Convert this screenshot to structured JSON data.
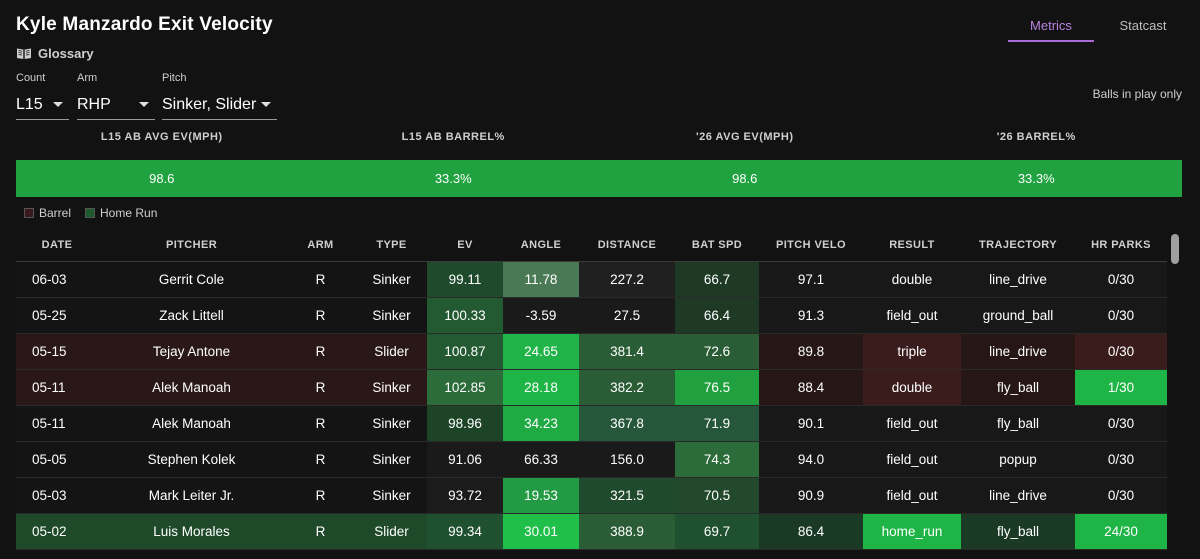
{
  "page": {
    "title": "Kyle Manzardo Exit Velocity",
    "glossary": "Glossary"
  },
  "tabs": [
    {
      "label": "Metrics",
      "active": true
    },
    {
      "label": "Statcast",
      "active": false
    }
  ],
  "filters": {
    "count": {
      "label": "Count",
      "value": "L15"
    },
    "arm": {
      "label": "Arm",
      "value": "RHP"
    },
    "pitch": {
      "label": "Pitch",
      "value": "Sinker, Slider"
    }
  },
  "balls_in_play": "Balls in play only",
  "summary": {
    "headers": [
      "L15 AB AVG EV(MPH)",
      "L15 AB BARREL%",
      "'26 AVG EV(MPH)",
      "'26 BARREL%"
    ],
    "values": [
      "98.6",
      "33.3%",
      "98.6",
      "33.3%"
    ],
    "color": "#1fa23f"
  },
  "legend": [
    {
      "label": "Barrel",
      "color": "#3a1a1a"
    },
    {
      "label": "Home Run",
      "color": "#1e5a2c"
    }
  ],
  "table": {
    "columns": [
      "DATE",
      "PITCHER",
      "ARM",
      "TYPE",
      "EV",
      "ANGLE",
      "DISTANCE",
      "BAT SPD",
      "PITCH VELO",
      "RESULT",
      "TRAJECTORY",
      "HR PARKS"
    ],
    "rows": [
      {
        "cells": [
          "06-03",
          "Gerrit Cole",
          "R",
          "Sinker",
          "99.11",
          "11.78",
          "227.2",
          "66.7",
          "97.1",
          "double",
          "line_drive",
          "0/30"
        ],
        "bg": "#141414",
        "colors": [
          "",
          "",
          "",
          "",
          "#1f4a2b",
          "#4a7a55",
          "#202020",
          "#1e3a25",
          "#181818",
          "#181818",
          "#181818",
          "#181818"
        ]
      },
      {
        "cells": [
          "05-25",
          "Zack Littell",
          "R",
          "Sinker",
          "100.33",
          "-3.59",
          "27.5",
          "66.4",
          "91.3",
          "field_out",
          "ground_ball",
          "0/30"
        ],
        "bg": "#141414",
        "colors": [
          "",
          "",
          "",
          "",
          "#245a32",
          "#1a1a1a",
          "#1a1a1a",
          "#1e3a25",
          "#181818",
          "#181818",
          "#181818",
          "#181818"
        ]
      },
      {
        "cells": [
          "05-15",
          "Tejay Antone",
          "R",
          "Slider",
          "100.87",
          "24.65",
          "381.4",
          "72.6",
          "89.8",
          "triple",
          "line_drive",
          "0/30"
        ],
        "bg": "#2a1818",
        "colors": [
          "",
          "",
          "",
          "",
          "#245a32",
          "#20b348",
          "#2a5d36",
          "#2a5d36",
          "#261616",
          "#3a1c1c",
          "#261616",
          "#3a1c1c"
        ]
      },
      {
        "cells": [
          "05-11",
          "Alek Manoah",
          "R",
          "Sinker",
          "102.85",
          "28.18",
          "382.2",
          "76.5",
          "88.4",
          "double",
          "fly_ball",
          "1/30"
        ],
        "bg": "#2a1818",
        "colors": [
          "",
          "",
          "",
          "",
          "#2c6b3a",
          "#1fb446",
          "#2a5d36",
          "#21a03f",
          "#261616",
          "#3a1c1c",
          "#261616",
          "#1fb446"
        ]
      },
      {
        "cells": [
          "05-11",
          "Alek Manoah",
          "R",
          "Sinker",
          "98.96",
          "34.23",
          "367.8",
          "71.9",
          "90.1",
          "field_out",
          "fly_ball",
          "0/30"
        ],
        "bg": "#141414",
        "colors": [
          "",
          "",
          "",
          "",
          "#1e4428",
          "#1faa44",
          "#27573a",
          "#27573a",
          "#181818",
          "#181818",
          "#181818",
          "#181818"
        ]
      },
      {
        "cells": [
          "05-05",
          "Stephen Kolek",
          "R",
          "Sinker",
          "91.06",
          "66.33",
          "156.0",
          "74.3",
          "94.0",
          "field_out",
          "popup",
          "0/30"
        ],
        "bg": "#141414",
        "colors": [
          "",
          "",
          "",
          "",
          "#1a1a1a",
          "#1a1a1a",
          "#1a1a1a",
          "#2c6b3a",
          "#181818",
          "#181818",
          "#181818",
          "#181818"
        ]
      },
      {
        "cells": [
          "05-03",
          "Mark Leiter Jr.",
          "R",
          "Sinker",
          "93.72",
          "19.53",
          "321.5",
          "70.5",
          "90.9",
          "field_out",
          "line_drive",
          "0/30"
        ],
        "bg": "#141414",
        "colors": [
          "",
          "",
          "",
          "",
          "#1b1b1b",
          "#239a44",
          "#1f4a2b",
          "#22492c",
          "#181818",
          "#181818",
          "#181818",
          "#181818"
        ]
      },
      {
        "cells": [
          "05-02",
          "Luis Morales",
          "R",
          "Slider",
          "99.34",
          "30.01",
          "388.9",
          "69.7",
          "86.4",
          "home_run",
          "fly_ball",
          "24/30"
        ],
        "bg": "#1e4a2a",
        "colors": [
          "",
          "",
          "",
          "",
          "#1f5030",
          "#1fbf4a",
          "#2a5d36",
          "#1f5030",
          "#1b3a25",
          "#1fb446",
          "#1b3a25",
          "#1fb446"
        ]
      }
    ]
  }
}
